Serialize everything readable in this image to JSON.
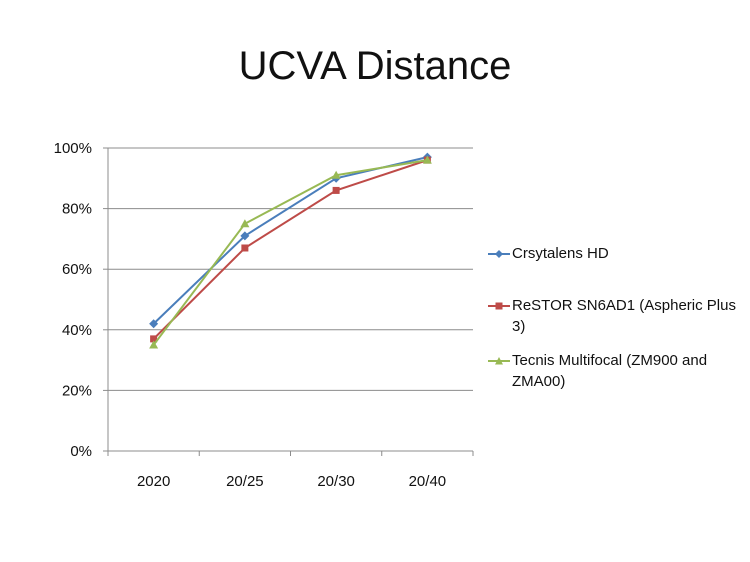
{
  "chart_data": {
    "type": "line",
    "title": "UCVA Distance",
    "xlabel": "",
    "ylabel": "",
    "categories": [
      "2020",
      "20/25",
      "20/30",
      "20/40"
    ],
    "ylim": [
      0,
      100
    ],
    "yticks": [
      "0%",
      "20%",
      "40%",
      "60%",
      "80%",
      "100%"
    ],
    "grid": true,
    "legend_position": "right",
    "series": [
      {
        "name": "Crsytalens HD",
        "values": [
          42,
          71,
          90,
          97
        ],
        "color": "#4a7ebb",
        "marker": "diamond"
      },
      {
        "name": "ReSTOR SN6AD1 (Aspheric Plus 3)",
        "values": [
          37,
          67,
          86,
          96
        ],
        "color": "#be4b48",
        "marker": "square"
      },
      {
        "name": "Tecnis Multifocal (ZM900 and ZMA00)",
        "values": [
          35,
          75,
          91,
          96
        ],
        "color": "#98b954",
        "marker": "triangle"
      }
    ]
  }
}
